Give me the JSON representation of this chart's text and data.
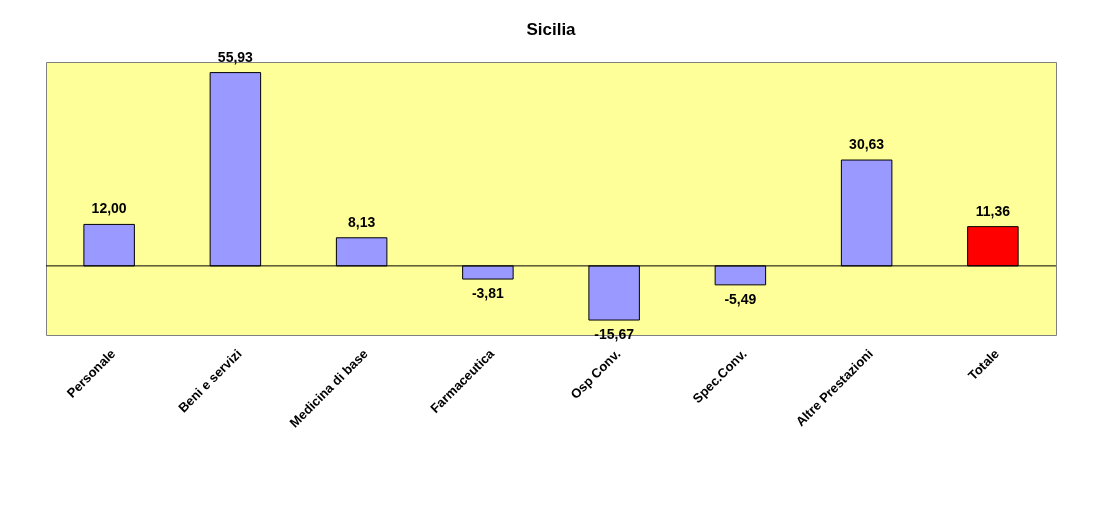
{
  "chart_data": {
    "type": "bar",
    "title": "Sicilia",
    "categories": [
      "Personale",
      "Beni e servizi",
      "Medicina di base",
      "Farmaceutica",
      "Osp  Conv.",
      "Spec.Conv.",
      "Altre Prestazioni",
      "Totale"
    ],
    "values": [
      12.0,
      55.93,
      8.13,
      -3.81,
      -15.67,
      -5.49,
      30.63,
      11.36
    ],
    "value_labels": [
      "12,00",
      "55,93",
      "8,13",
      "-3,81",
      "-15,67",
      "-5,49",
      "30,63",
      "11,36"
    ],
    "colors": [
      "#9999ff",
      "#9999ff",
      "#9999ff",
      "#9999ff",
      "#9999ff",
      "#9999ff",
      "#9999ff",
      "#ff0000"
    ],
    "ylim": [
      -20,
      59
    ],
    "tick_labels": "x",
    "grid": false
  }
}
